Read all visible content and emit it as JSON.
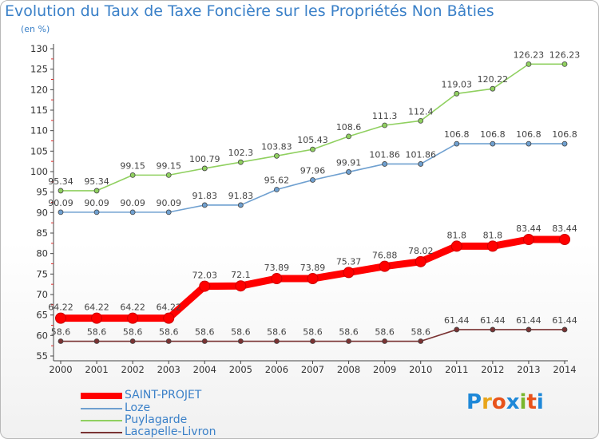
{
  "title": "Evolution du Taux de Taxe Foncière sur les Propriétés Non Bâties",
  "unit": "(en %)",
  "logo": {
    "text": "Proxiti",
    "letters": [
      "P",
      "r",
      "o",
      "x",
      "i",
      "t",
      "i"
    ],
    "colors": [
      "#1e88d8",
      "#e8a51b",
      "#e8531b",
      "#1e88d8",
      "#7ab72e",
      "#e8531b",
      "#1e88d8"
    ]
  },
  "legend": [
    {
      "label": "SAINT-PROJET",
      "color": "#ff0000",
      "weight": "thick"
    },
    {
      "label": "Loze",
      "color": "#6fa0d0",
      "weight": "thin"
    },
    {
      "label": "Puylagarde",
      "color": "#90d060",
      "weight": "thin"
    },
    {
      "label": "Lacapelle-Livron",
      "color": "#7a3333",
      "weight": "thin"
    }
  ],
  "chart_data": {
    "type": "line",
    "title": "Evolution du Taux de Taxe Foncière sur les Propriétés Non Bâties",
    "ylabel": "(en %)",
    "categories": [
      "2000",
      "2001",
      "2002",
      "2003",
      "2004",
      "2005",
      "2006",
      "2007",
      "2008",
      "2009",
      "2010",
      "2011",
      "2012",
      "2013",
      "2014"
    ],
    "ylim": [
      55,
      130
    ],
    "yticks": [
      55,
      60,
      65,
      70,
      75,
      80,
      85,
      90,
      95,
      100,
      105,
      110,
      115,
      120,
      125,
      130
    ],
    "grid": false,
    "legend_position": "bottom-left",
    "series": [
      {
        "name": "SAINT-PROJET",
        "color": "#ff0000",
        "values": [
          64.22,
          64.22,
          64.22,
          64.22,
          72.03,
          72.1,
          73.89,
          73.89,
          75.37,
          76.88,
          78.02,
          81.8,
          81.8,
          83.44,
          83.44
        ],
        "labels": [
          "64.22",
          "64.22",
          "64.22",
          "64.22",
          "72.03",
          "72.1",
          "73.89",
          "73.89",
          "75.37",
          "76.88",
          "78.02",
          "81.8",
          "81.8",
          "83.44",
          "83.44"
        ]
      },
      {
        "name": "Loze",
        "color": "#6fa0d0",
        "values": [
          90.09,
          90.09,
          90.09,
          90.09,
          91.83,
          91.83,
          95.62,
          97.96,
          99.91,
          101.86,
          101.86,
          106.8,
          106.8,
          106.8,
          106.8
        ],
        "labels": [
          "90.09",
          "90.09",
          "90.09",
          "90.09",
          "91.83",
          "91.83",
          "95.62",
          "97.96",
          "99.91",
          "101.86",
          "101.86",
          "106.8",
          "106.8",
          "106.8",
          "106.8"
        ]
      },
      {
        "name": "Puylagarde",
        "color": "#90d060",
        "values": [
          95.34,
          95.34,
          99.15,
          99.15,
          100.79,
          102.3,
          103.83,
          105.43,
          108.6,
          111.3,
          112.4,
          119.03,
          120.22,
          126.23,
          126.23
        ],
        "labels": [
          "95.34",
          "95.34",
          "99.15",
          "99.15",
          "100.79",
          "102.3",
          "103.83",
          "105.43",
          "108.6",
          "111.3",
          "112.4",
          "119.03",
          "120.22",
          "126.23",
          "126.23"
        ]
      },
      {
        "name": "Lacapelle-Livron",
        "color": "#7a3333",
        "values": [
          58.6,
          58.6,
          58.6,
          58.6,
          58.6,
          58.6,
          58.6,
          58.6,
          58.6,
          58.6,
          58.6,
          61.44,
          61.44,
          61.44,
          61.44
        ],
        "labels": [
          "58.6",
          "58.6",
          "58.6",
          "58.6",
          "58.6",
          "58.6",
          "58.6",
          "58.6",
          "58.6",
          "58.6",
          "58.6",
          "61.44",
          "61.44",
          "61.44",
          "61.44"
        ]
      }
    ]
  }
}
